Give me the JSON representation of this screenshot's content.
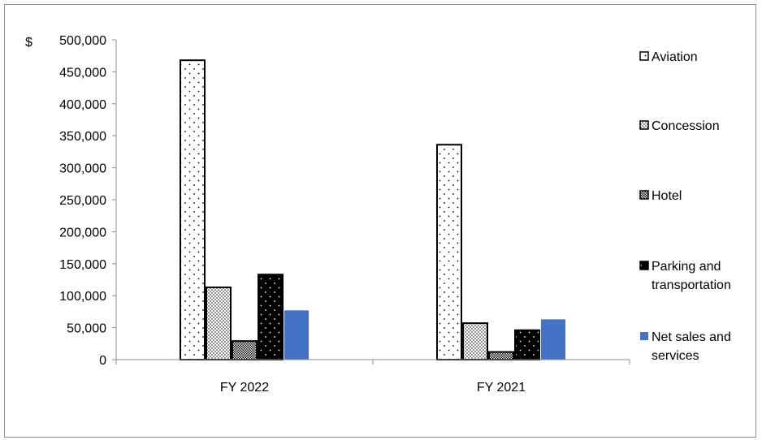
{
  "chart_data": {
    "type": "bar",
    "title": "",
    "xlabel": "",
    "ylabel": "$",
    "ylim": [
      0,
      500000
    ],
    "y_ticks": [
      "0",
      "50,000",
      "100,000",
      "150,000",
      "200,000",
      "250,000",
      "300,000",
      "350,000",
      "400,000",
      "450,000",
      "500,000"
    ],
    "categories": [
      "FY 2022",
      "FY 2021"
    ],
    "series": [
      {
        "name": "Aviation",
        "values": [
          468000,
          336000
        ],
        "fill": "dots-sparse",
        "color": "#ffffff"
      },
      {
        "name": "Concession",
        "values": [
          113000,
          57000
        ],
        "fill": "dots-dense",
        "color": "#ffffff"
      },
      {
        "name": "Hotel",
        "values": [
          29000,
          12000
        ],
        "fill": "crosshatch",
        "color": "#7f7f7f"
      },
      {
        "name": "Parking and\ntransportation",
        "values": [
          133000,
          46000
        ],
        "fill": "black-dots",
        "color": "#000000"
      },
      {
        "name": "Net sales and\nservices",
        "values": [
          77000,
          63000
        ],
        "fill": "solid",
        "color": "#4472c4"
      }
    ],
    "legend_position": "right",
    "grid": false
  }
}
